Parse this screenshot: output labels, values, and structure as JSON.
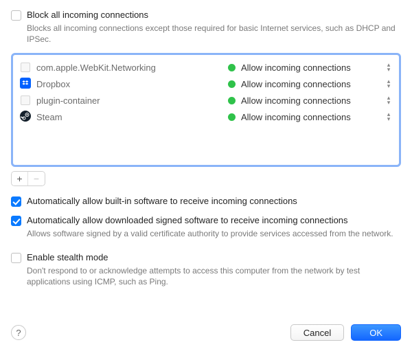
{
  "block_all": {
    "label": "Block all incoming connections",
    "description": "Blocks all incoming connections except those required for basic Internet services, such as DHCP and IPSec.",
    "checked": false
  },
  "apps": [
    {
      "name": "com.apple.WebKit.Networking",
      "icon": "generic",
      "status": "Allow incoming connections",
      "status_color": "#2fc24a"
    },
    {
      "name": "Dropbox",
      "icon": "dropbox",
      "status": "Allow incoming connections",
      "status_color": "#2fc24a"
    },
    {
      "name": "plugin-container",
      "icon": "generic",
      "status": "Allow incoming connections",
      "status_color": "#2fc24a"
    },
    {
      "name": "Steam",
      "icon": "steam",
      "status": "Allow incoming connections",
      "status_color": "#2fc24a"
    }
  ],
  "addremove": {
    "add_label": "+",
    "remove_label": "−",
    "remove_enabled": false
  },
  "auto_builtin": {
    "label": "Automatically allow built-in software to receive incoming connections",
    "checked": true
  },
  "auto_signed": {
    "label": "Automatically allow downloaded signed software to receive incoming connections",
    "description": "Allows software signed by a valid certificate authority to provide services accessed from the network.",
    "checked": true
  },
  "stealth": {
    "label": "Enable stealth mode",
    "description": "Don't respond to or acknowledge attempts to access this computer from the network by test applications using ICMP, such as Ping.",
    "checked": false
  },
  "footer": {
    "help_label": "?",
    "cancel_label": "Cancel",
    "ok_label": "OK"
  },
  "colors": {
    "accent": "#0a7aff",
    "focus_border": "#8ab4f8",
    "status_green": "#2fc24a"
  }
}
